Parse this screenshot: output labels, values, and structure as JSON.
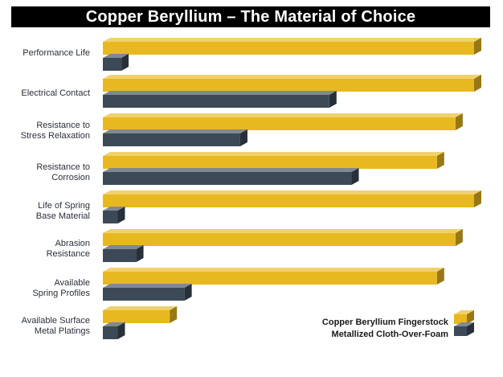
{
  "title": "Copper Beryllium – The Material of Choice",
  "chart_data": {
    "type": "bar",
    "orientation": "horizontal",
    "categories": [
      "Performance Life",
      "Electrical Contact",
      "Resistance to\nStress Relaxation",
      "Resistance to\nCorrosion",
      "Life of Spring\nBase Material",
      "Abrasion\nResistance",
      "Available\nSpring Profiles",
      "Available Surface\nMetal Platings"
    ],
    "series": [
      {
        "name": "Copper Beryllium Fingerstock",
        "values": [
          100,
          100,
          95,
          90,
          100,
          95,
          90,
          18
        ],
        "color": "#e8b820"
      },
      {
        "name": "Metallized Cloth-Over-Foam",
        "values": [
          5,
          61,
          37,
          67,
          4,
          9,
          22,
          4
        ],
        "color": "#3c4a57"
      }
    ],
    "xlim": [
      0,
      100
    ],
    "grid": false,
    "legend": "bottom-right"
  }
}
